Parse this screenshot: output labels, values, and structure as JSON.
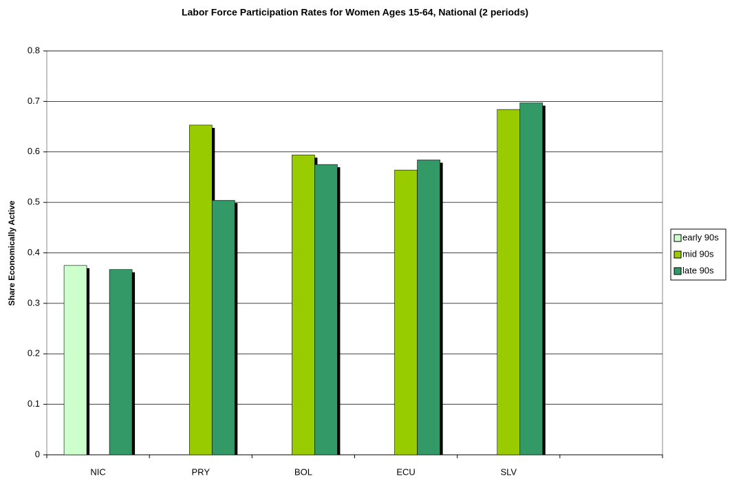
{
  "chart_data": {
    "type": "bar",
    "title": "Labor Force Participation Rates for Women Ages 15-64, National  (2 periods)",
    "y_label": "Share Economically Active",
    "categories": [
      "NIC",
      "PRY",
      "BOL",
      "ECU",
      "SLV",
      null
    ],
    "series": [
      {
        "name": "early 90s",
        "color": "#ccffcc",
        "values": [
          0.375,
          null,
          null,
          null,
          null,
          null
        ]
      },
      {
        "name": "mid 90s",
        "color": "#99cc00",
        "values": [
          null,
          0.653,
          0.594,
          0.564,
          0.684,
          null
        ]
      },
      {
        "name": "late 90s",
        "color": "#339966",
        "values": [
          0.367,
          0.504,
          0.575,
          0.584,
          0.697,
          null
        ]
      }
    ],
    "ylim": [
      0,
      0.8
    ],
    "yticks": [
      0,
      0.1,
      0.2,
      0.3,
      0.4,
      0.5,
      0.6,
      0.7,
      0.8
    ],
    "grid": true,
    "legend": "right"
  }
}
